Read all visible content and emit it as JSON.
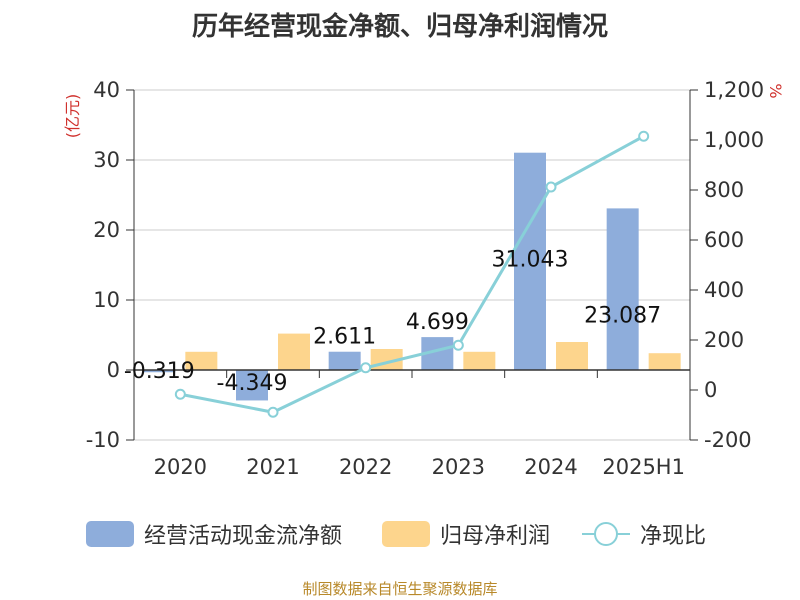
{
  "title": "历年经营现金净额、归母净利润情况",
  "source": "制图数据来自恒生聚源数据库",
  "colors": {
    "cash": "#8eaddb",
    "profit": "#fdd58d",
    "ratio": "#88d0d8",
    "unit": "#d0312d",
    "axis": "#333333",
    "grid": "#cccccc",
    "source": "#b8892a"
  },
  "chart_data": {
    "type": "bar",
    "title": "历年经营现金净额、归母净利润情况",
    "categories": [
      "2020",
      "2021",
      "2022",
      "2023",
      "2024",
      "2025H1"
    ],
    "left_axis": {
      "unit": "(亿元)",
      "ylim": [
        -10,
        40
      ],
      "ticks": [
        "-10",
        "0",
        "10",
        "20",
        "30",
        "40"
      ]
    },
    "right_axis": {
      "unit": "%",
      "ylim": [
        -200,
        1200
      ],
      "ticks": [
        "-200",
        "0",
        "200",
        "400",
        "600",
        "800",
        "1,000",
        "1,200"
      ]
    },
    "grid": true,
    "legend_position": "bottom",
    "series": [
      {
        "name": "经营活动现金流净额",
        "type": "bar",
        "axis": "left",
        "values": [
          -0.319,
          -4.349,
          2.611,
          4.699,
          31.043,
          23.087
        ],
        "labels": [
          "-0.319",
          "-4.349",
          "2.611",
          "4.699",
          "31.043",
          "23.087"
        ]
      },
      {
        "name": "归母净利润",
        "type": "bar",
        "axis": "left",
        "values": [
          2.6,
          5.2,
          3.0,
          2.6,
          4.0,
          2.4
        ]
      },
      {
        "name": "净现比",
        "type": "line",
        "axis": "right",
        "values": [
          -17,
          -89,
          89,
          179,
          812,
          1015
        ]
      }
    ]
  }
}
